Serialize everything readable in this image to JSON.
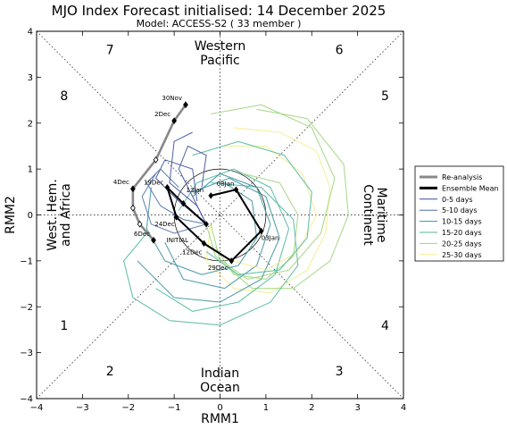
{
  "chart_data": {
    "type": "line",
    "title": "MJO Index Forecast initialised:  14  December 2025",
    "subtitle": "Model: ACCESS-S2 ( 33 member )",
    "xlabel": "RMM1",
    "ylabel": "RMM2",
    "xlim": [
      -4,
      4
    ],
    "ylim": [
      -4,
      4
    ],
    "x_ticks": [
      "−4",
      "−3",
      "−2",
      "−1",
      "0",
      "1",
      "2",
      "3",
      "4"
    ],
    "y_ticks": [
      "−4",
      "−3",
      "−2",
      "−1",
      "0",
      "1",
      "2",
      "3",
      "4"
    ],
    "grid": false,
    "phase_numbers": [
      {
        "label": "1",
        "x": -3.4,
        "y": -2.4
      },
      {
        "label": "2",
        "x": -2.4,
        "y": -3.4
      },
      {
        "label": "3",
        "x": 2.6,
        "y": -3.4
      },
      {
        "label": "4",
        "x": 3.6,
        "y": -2.4
      },
      {
        "label": "5",
        "x": 3.6,
        "y": 2.6
      },
      {
        "label": "6",
        "x": 2.6,
        "y": 3.6
      },
      {
        "label": "7",
        "x": -2.4,
        "y": 3.6
      },
      {
        "label": "8",
        "x": -3.4,
        "y": 2.6
      }
    ],
    "region_labels": {
      "top": [
        "Western",
        "Pacific"
      ],
      "bottom": [
        "Indian",
        "Ocean"
      ],
      "left": [
        "West. Hem.",
        "and Africa"
      ],
      "right": [
        "Maritime",
        "Continent"
      ]
    },
    "legend": {
      "position": "outside-right",
      "entries": [
        {
          "label": "Re-analysis",
          "color": "#888888",
          "width": 3
        },
        {
          "label": "Ensemble Mean",
          "color": "#000000",
          "width": 3
        },
        {
          "label": "0-5 days",
          "color": "#3b4f9a",
          "width": 1
        },
        {
          "label": "5-10 days",
          "color": "#4a6fa8",
          "width": 1
        },
        {
          "label": "10-15 days",
          "color": "#3a8fa0",
          "width": 1
        },
        {
          "label": "15-20 days",
          "color": "#4fb7a0",
          "width": 1
        },
        {
          "label": "20-25 days",
          "color": "#9ed57a",
          "width": 1
        },
        {
          "label": "25-30 days",
          "color": "#f2ee88",
          "width": 1
        }
      ]
    },
    "reanalysis": {
      "name": "Re-analysis",
      "points": [
        {
          "x": -0.75,
          "y": 2.4,
          "label": "30Nov"
        },
        {
          "x": -1.0,
          "y": 2.05,
          "label": "2Dec"
        },
        {
          "x": -1.4,
          "y": 1.2,
          "label": ""
        },
        {
          "x": -1.9,
          "y": 0.57,
          "label": "4Dec"
        },
        {
          "x": -1.9,
          "y": 0.15,
          "label": ""
        },
        {
          "x": -1.75,
          "y": -0.2,
          "label": ""
        },
        {
          "x": -1.45,
          "y": -0.55,
          "label": "6Dec"
        }
      ]
    },
    "ensemble_mean": {
      "name": "Ensemble Mean",
      "points": [
        {
          "x": -0.3,
          "y": -0.2,
          "label": "INITIAL"
        },
        {
          "x": -0.8,
          "y": 0.25,
          "label": ""
        },
        {
          "x": -1.15,
          "y": 0.6,
          "label": "19Dec"
        },
        {
          "x": -0.95,
          "y": -0.05,
          "label": "24Dec"
        },
        {
          "x": -0.35,
          "y": -0.62,
          "label": "12Dec"
        },
        {
          "x": 0.25,
          "y": -1.0,
          "label": "29Dec"
        },
        {
          "x": 0.9,
          "y": -0.35,
          "label": "03Jan"
        },
        {
          "x": 0.35,
          "y": 0.55,
          "label": "08Jan"
        },
        {
          "x": -0.2,
          "y": 0.42,
          "label": "13Jan"
        }
      ]
    },
    "ensemble_members": [
      {
        "name": "",
        "color": "#f2ee88",
        "points": [
          [
            0.3,
            1.9
          ],
          [
            1.3,
            1.8
          ],
          [
            2.1,
            1.4
          ],
          [
            2.4,
            0.6
          ],
          [
            2.3,
            -0.4
          ],
          [
            1.9,
            -1.2
          ],
          [
            1.1,
            -1.7
          ],
          [
            0.3,
            -1.6
          ],
          [
            -0.3,
            -1.0
          ],
          [
            -0.2,
            -0.2
          ]
        ]
      },
      {
        "name": "",
        "color": "#9ed57a",
        "points": [
          [
            0.8,
            2.3
          ],
          [
            1.9,
            2.1
          ],
          [
            2.7,
            1.1
          ],
          [
            2.8,
            0.0
          ],
          [
            2.4,
            -1.0
          ],
          [
            1.6,
            -1.6
          ],
          [
            0.7,
            -1.6
          ],
          [
            0.0,
            -1.0
          ],
          [
            -0.2,
            -0.2
          ]
        ]
      },
      {
        "name": "",
        "color": "#9ed57a",
        "points": [
          [
            -0.2,
            2.2
          ],
          [
            0.9,
            2.4
          ],
          [
            2.0,
            1.9
          ],
          [
            2.5,
            0.8
          ],
          [
            2.2,
            -0.4
          ],
          [
            1.5,
            -1.2
          ],
          [
            0.6,
            -1.4
          ],
          [
            -0.1,
            -0.9
          ],
          [
            -0.3,
            -0.2
          ]
        ]
      },
      {
        "name": "",
        "color": "#4fb7a0",
        "points": [
          [
            -1.6,
            -0.4
          ],
          [
            -2.1,
            -1.0
          ],
          [
            -1.9,
            -1.8
          ],
          [
            -1.1,
            -2.3
          ],
          [
            0.0,
            -2.4
          ],
          [
            1.1,
            -1.9
          ],
          [
            1.7,
            -1.1
          ],
          [
            1.6,
            -0.1
          ],
          [
            0.9,
            0.6
          ],
          [
            -0.2,
            0.7
          ]
        ]
      },
      {
        "name": "",
        "color": "#4fb7a0",
        "points": [
          [
            -1.4,
            -1.6
          ],
          [
            -0.6,
            -2.1
          ],
          [
            0.4,
            -1.9
          ],
          [
            1.2,
            -1.3
          ],
          [
            1.5,
            -0.3
          ],
          [
            1.1,
            0.6
          ],
          [
            0.3,
            1.0
          ],
          [
            -0.5,
            0.7
          ],
          [
            -0.9,
            0.1
          ]
        ]
      },
      {
        "name": "",
        "color": "#3a8fa0",
        "points": [
          [
            -1.8,
            -1.0
          ],
          [
            -1.0,
            -1.8
          ],
          [
            0.0,
            -1.9
          ],
          [
            0.9,
            -1.4
          ],
          [
            1.3,
            -0.5
          ],
          [
            1.0,
            0.4
          ],
          [
            0.2,
            0.8
          ],
          [
            -0.6,
            0.5
          ]
        ]
      },
      {
        "name": "",
        "color": "#3a8fa0",
        "points": [
          [
            -1.2,
            -0.6
          ],
          [
            -0.8,
            -1.4
          ],
          [
            0.1,
            -1.6
          ],
          [
            0.8,
            -1.1
          ],
          [
            1.1,
            -0.2
          ],
          [
            0.8,
            0.6
          ],
          [
            0.0,
            0.9
          ],
          [
            -0.6,
            0.4
          ]
        ]
      },
      {
        "name": "",
        "color": "#9ed57a",
        "points": [
          [
            0.5,
            0.9
          ],
          [
            1.3,
            0.7
          ],
          [
            1.7,
            0.0
          ],
          [
            1.6,
            -0.9
          ],
          [
            1.0,
            -1.4
          ],
          [
            0.3,
            -1.3
          ],
          [
            -0.1,
            -0.7
          ]
        ]
      },
      {
        "name": "",
        "color": "#f2ee88",
        "points": [
          [
            0.1,
            1.5
          ],
          [
            1.0,
            1.5
          ],
          [
            1.8,
            0.9
          ],
          [
            2.1,
            0.0
          ],
          [
            1.7,
            -0.8
          ],
          [
            1.0,
            -1.2
          ],
          [
            0.3,
            -1.0
          ]
        ]
      },
      {
        "name": "",
        "color": "#4fb7a0",
        "points": [
          [
            -0.6,
            1.3
          ],
          [
            0.4,
            1.6
          ],
          [
            1.4,
            1.3
          ],
          [
            2.0,
            0.5
          ],
          [
            1.9,
            -0.5
          ],
          [
            1.3,
            -1.2
          ],
          [
            0.4,
            -1.3
          ],
          [
            -0.3,
            -0.8
          ]
        ]
      },
      {
        "name": "",
        "color": "#3a8fa0",
        "points": [
          [
            -1.5,
            0.6
          ],
          [
            -1.6,
            -0.3
          ],
          [
            -1.2,
            -1.0
          ],
          [
            -0.4,
            -1.3
          ],
          [
            0.4,
            -1.1
          ],
          [
            0.8,
            -0.5
          ],
          [
            0.7,
            0.3
          ],
          [
            0.1,
            0.7
          ]
        ]
      }
    ],
    "early_members": [
      {
        "name": "",
        "color": "#3b4f9a",
        "points": [
          [
            -0.3,
            -0.2
          ],
          [
            -0.9,
            0.3
          ],
          [
            -1.4,
            0.8
          ],
          [
            -1.2,
            1.2
          ],
          [
            -0.6,
            1.0
          ],
          [
            -0.5,
            0.3
          ]
        ]
      },
      {
        "name": "",
        "color": "#4a6fa8",
        "points": [
          [
            -0.3,
            -0.2
          ],
          [
            -0.8,
            -0.1
          ],
          [
            -1.3,
            0.2
          ],
          [
            -1.6,
            0.7
          ],
          [
            -1.3,
            1.0
          ],
          [
            -0.9,
            0.6
          ]
        ]
      },
      {
        "name": "",
        "color": "#3b4f9a",
        "points": [
          [
            -0.3,
            -0.2
          ],
          [
            -0.6,
            0.4
          ],
          [
            -0.9,
            1.0
          ],
          [
            -0.7,
            1.5
          ],
          [
            -0.3,
            1.3
          ],
          [
            -0.4,
            0.6
          ]
        ]
      },
      {
        "name": "",
        "color": "#4a6fa8",
        "points": [
          [
            -0.3,
            -0.2
          ],
          [
            -1.0,
            -0.4
          ],
          [
            -1.5,
            -0.2
          ],
          [
            -1.7,
            0.4
          ],
          [
            -1.4,
            0.9
          ]
        ]
      },
      {
        "name": "",
        "color": "#3b4f9a",
        "points": [
          [
            -0.3,
            -0.2
          ],
          [
            -0.5,
            0.2
          ],
          [
            -1.1,
            0.7
          ],
          [
            -1.0,
            1.6
          ],
          [
            -0.6,
            1.8
          ]
        ]
      }
    ]
  }
}
